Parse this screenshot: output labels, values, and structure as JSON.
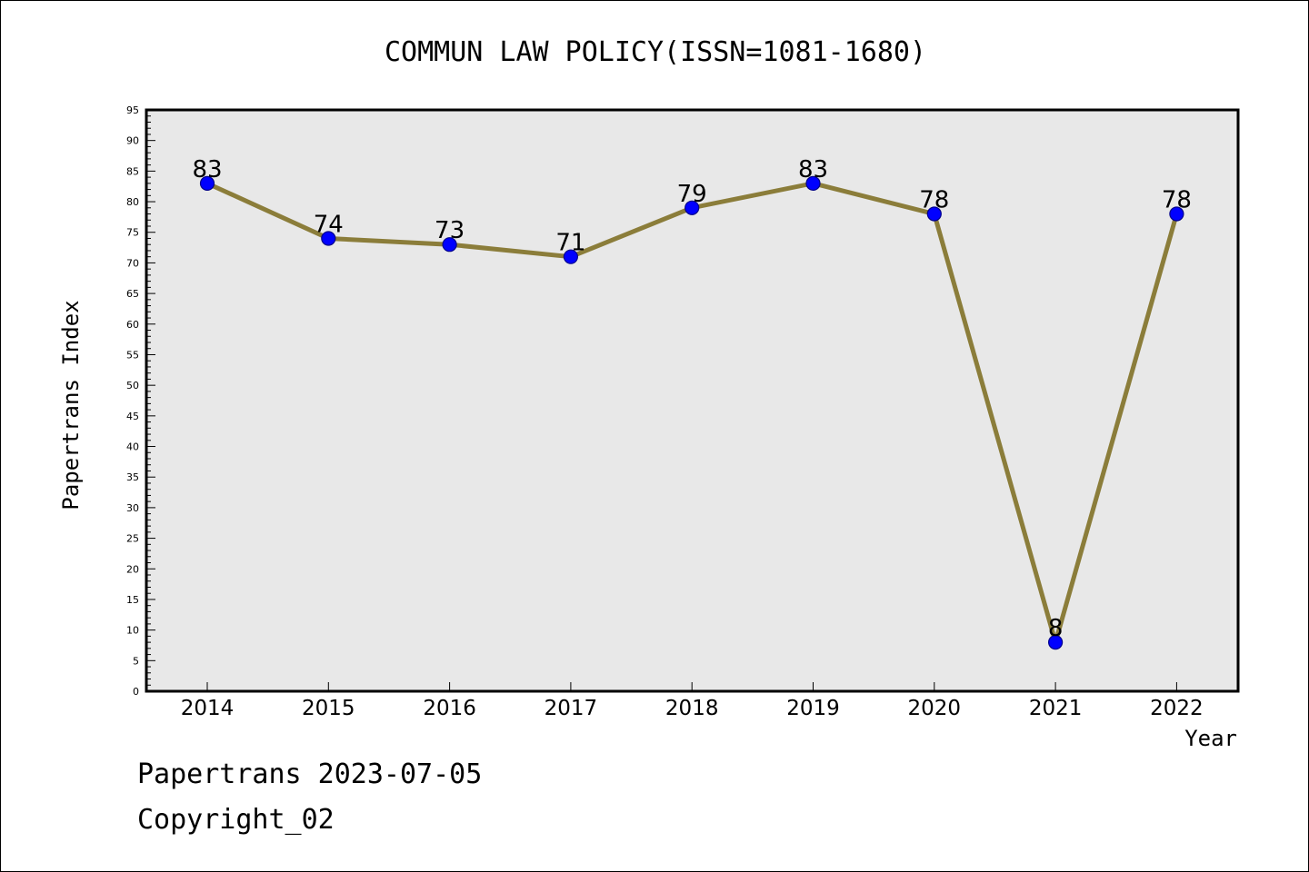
{
  "chart_data": {
    "type": "line",
    "title": "COMMUN LAW POLICY(ISSN=1081-1680)",
    "xlabel": "Year",
    "ylabel": "Papertrans Index",
    "categories": [
      "2014",
      "2015",
      "2016",
      "2017",
      "2018",
      "2019",
      "2020",
      "2021",
      "2022"
    ],
    "series": [
      {
        "values": [
          83,
          74,
          73,
          71,
          79,
          83,
          78,
          8,
          78
        ]
      }
    ],
    "ylim": [
      0,
      95
    ],
    "yticks": [
      0,
      5,
      10,
      15,
      20,
      25,
      30,
      35,
      40,
      45,
      50,
      55,
      60,
      65,
      70,
      75,
      80,
      85,
      90,
      95
    ],
    "grid": false,
    "data_labels": true,
    "colors": {
      "line": "#8b7d3a",
      "marker_fill": "#0000ff",
      "marker_stroke": "#00008b",
      "plot_background": "#e8e8e8"
    }
  },
  "footer": {
    "date_text": "Papertrans 2023-07-05",
    "copyright_text": "Copyright_02"
  }
}
